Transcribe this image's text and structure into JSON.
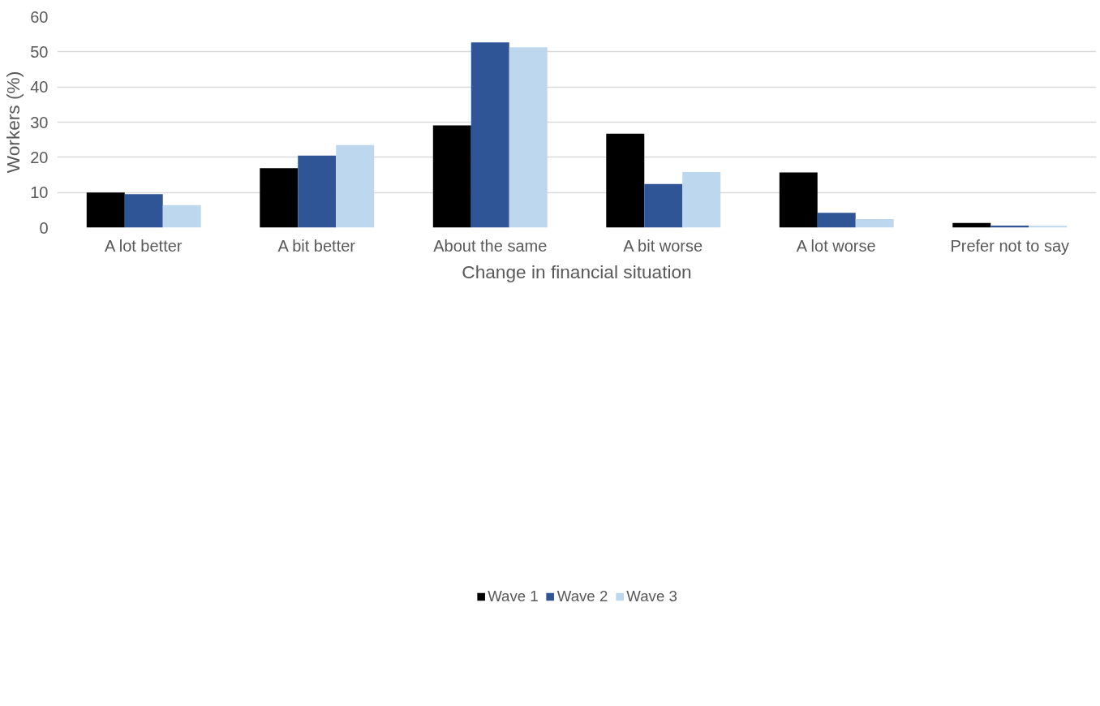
{
  "chart_data": {
    "type": "bar",
    "xlabel": "Change in financial situation",
    "ylabel": "Workers (%)",
    "categories": [
      "A lot better",
      "A bit better",
      "About the same",
      "A bit worse",
      "A lot worse",
      "Prefer not to say"
    ],
    "series": [
      {
        "name": "Wave 1",
        "color": "#000000",
        "values": [
          10.0,
          16.9,
          29.1,
          26.7,
          15.7,
          1.3
        ]
      },
      {
        "name": "Wave 2",
        "color": "#2f5597",
        "values": [
          9.5,
          20.5,
          52.7,
          12.4,
          4.2,
          0.6
        ]
      },
      {
        "name": "Wave 3",
        "color": "#bdd7ee",
        "values": [
          6.4,
          23.5,
          51.3,
          15.8,
          2.4,
          0.5
        ]
      }
    ],
    "ylim": [
      0,
      60
    ],
    "yticks": [
      0,
      10,
      20,
      30,
      40,
      50,
      60
    ],
    "grid": "y",
    "legend": "bottom"
  }
}
